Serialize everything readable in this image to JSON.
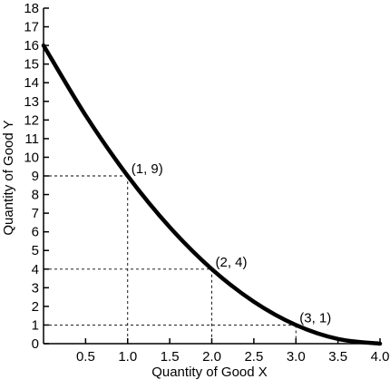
{
  "chart_data": {
    "type": "line",
    "title": "",
    "xlabel": "Quantity of Good X",
    "ylabel": "Quantity of Good Y",
    "xlim": [
      0,
      4.0
    ],
    "ylim": [
      0,
      18
    ],
    "x_ticks": [
      "0.5",
      "1.0",
      "1.5",
      "2.0",
      "2.5",
      "3.0",
      "3.5",
      "4.0"
    ],
    "y_ticks": [
      "0",
      "1",
      "2",
      "3",
      "4",
      "5",
      "6",
      "7",
      "8",
      "9",
      "10",
      "11",
      "12",
      "13",
      "14",
      "15",
      "16",
      "17",
      "18"
    ],
    "grid": false,
    "legend": "none",
    "series": [
      {
        "x": [
          0,
          0.5,
          1.0,
          1.5,
          2.0,
          2.5,
          3.0,
          3.5,
          4.0
        ],
        "y": [
          16,
          12.25,
          9,
          6.25,
          4,
          2.25,
          1,
          0.25,
          0
        ],
        "color": "#000000"
      }
    ],
    "highlighted_points": [
      {
        "x": 1,
        "y": 9,
        "label": "(1, 9)"
      },
      {
        "x": 2,
        "y": 4,
        "label": "(2, 4)"
      },
      {
        "x": 3,
        "y": 1,
        "label": "(3, 1)"
      }
    ],
    "reference_lines": "dashed"
  }
}
